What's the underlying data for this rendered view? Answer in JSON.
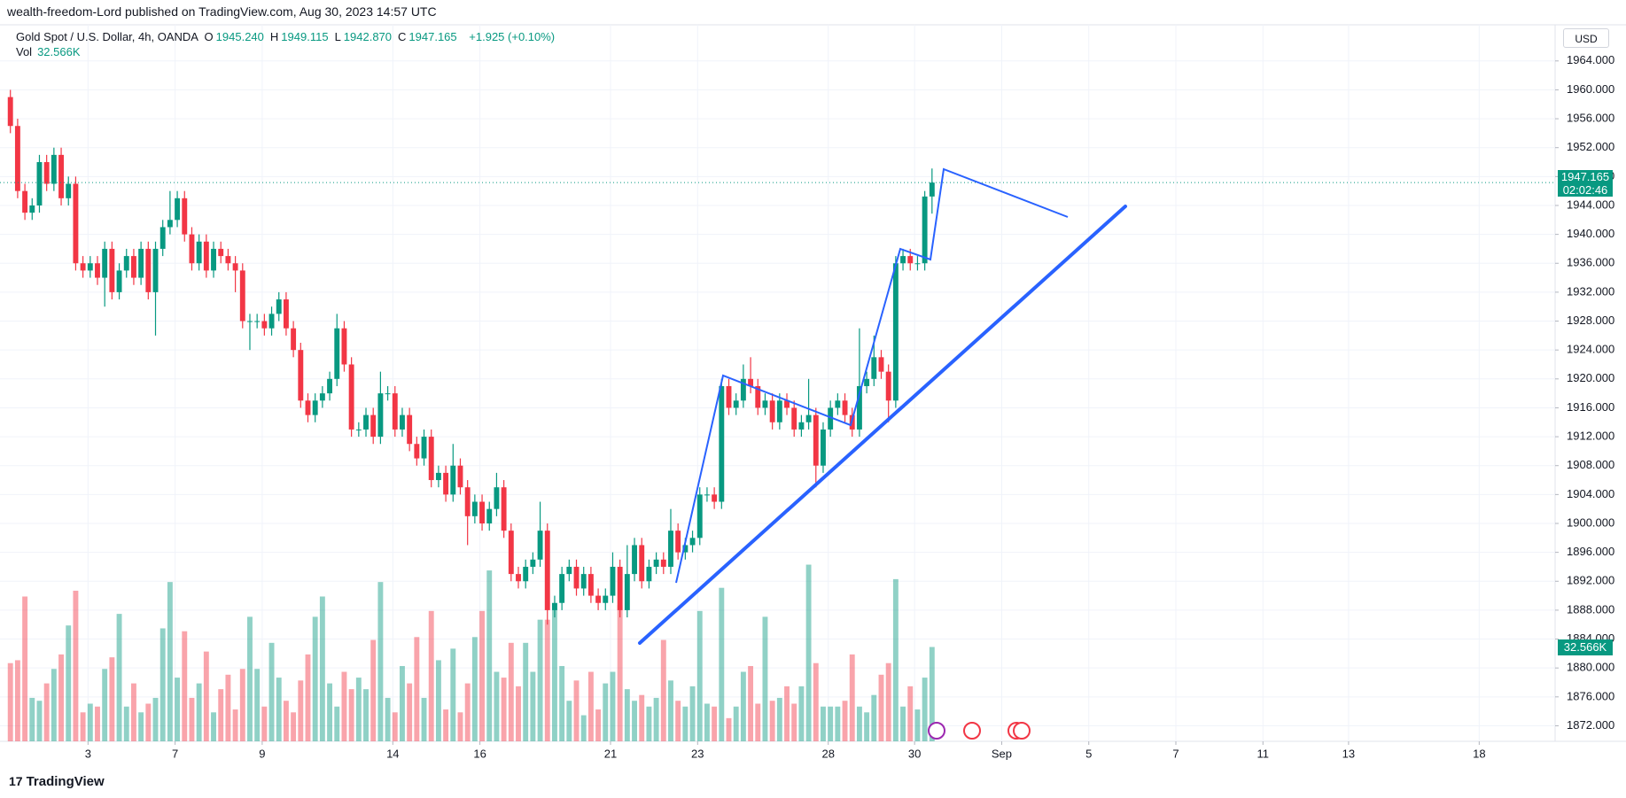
{
  "header": {
    "published": "wealth-freedom-Lord published on TradingView.com, Aug 30, 2023 14:57 UTC",
    "currency": "USD",
    "countdown": "02:02:46",
    "brand": "TradingView",
    "brand_logo": "17"
  },
  "legend": {
    "symbol": "Gold Spot / U.S. Dollar, 4h, OANDA",
    "ohlc": [
      {
        "key": "O",
        "value": "1945.240"
      },
      {
        "key": "H",
        "value": "1949.115"
      },
      {
        "key": "L",
        "value": "1942.870"
      },
      {
        "key": "C",
        "value": "1947.165"
      }
    ],
    "change": "+1.925 (+0.10%)",
    "vol_key": "Vol",
    "vol_value": "32.566K"
  },
  "chart_data": {
    "type": "candlestick",
    "up_color": "#089981",
    "down_color": "#f23645",
    "volume_up_color": "rgba(8,153,129,0.45)",
    "volume_down_color": "rgba(242,54,69,0.45)",
    "grid": true,
    "xlim": [
      -1.43,
      212.86
    ],
    "xticks": [
      {
        "value": 10.7,
        "label": "3"
      },
      {
        "value": 22.7,
        "label": "7"
      },
      {
        "value": 34.7,
        "label": "9"
      },
      {
        "value": 52.7,
        "label": "14"
      },
      {
        "value": 64.7,
        "label": "16"
      },
      {
        "value": 82.7,
        "label": "21"
      },
      {
        "value": 94.7,
        "label": "23"
      },
      {
        "value": 112.7,
        "label": "28"
      },
      {
        "value": 124.6,
        "label": "30"
      },
      {
        "value": 136.6,
        "label": "Sep"
      },
      {
        "value": 148.6,
        "label": "5"
      },
      {
        "value": 160.6,
        "label": "7"
      },
      {
        "value": 172.6,
        "label": "11"
      },
      {
        "value": 184.4,
        "label": "13"
      },
      {
        "value": 202.4,
        "label": "18"
      }
    ],
    "ylim": [
      1869.85,
      1969.0
    ],
    "yticks": [
      {
        "value": 1872,
        "label": "1872.000"
      },
      {
        "value": 1876,
        "label": "1876.000"
      },
      {
        "value": 1880,
        "label": "1880.000"
      },
      {
        "value": 1884,
        "label": "1884.000"
      },
      {
        "value": 1888,
        "label": "1888.000"
      },
      {
        "value": 1892,
        "label": "1892.000"
      },
      {
        "value": 1896,
        "label": "1896.000"
      },
      {
        "value": 1900,
        "label": "1900.000"
      },
      {
        "value": 1904,
        "label": "1904.000"
      },
      {
        "value": 1908,
        "label": "1908.000"
      },
      {
        "value": 1912,
        "label": "1912.000"
      },
      {
        "value": 1916,
        "label": "1916.000"
      },
      {
        "value": 1920,
        "label": "1920.000"
      },
      {
        "value": 1924,
        "label": "1924.000"
      },
      {
        "value": 1928,
        "label": "1928.000"
      },
      {
        "value": 1932,
        "label": "1932.000"
      },
      {
        "value": 1936,
        "label": "1936.000"
      },
      {
        "value": 1940,
        "label": "1940.000"
      },
      {
        "value": 1944,
        "label": "1944.000"
      },
      {
        "value": 1948,
        "label": "1948.000"
      },
      {
        "value": 1952,
        "label": "1952.000"
      },
      {
        "value": 1956,
        "label": "1956.000"
      },
      {
        "value": 1960,
        "label": "1960.000"
      },
      {
        "value": 1964,
        "label": "1964.000"
      }
    ],
    "volume_lim": [
      0,
      100
    ],
    "open": [
      1959,
      1955,
      1946,
      1943,
      1944,
      1950,
      1947,
      1951,
      1945,
      1947,
      1936,
      1935,
      1936,
      1934,
      1938,
      1932,
      1935,
      1937,
      1934,
      1938,
      1932,
      1938,
      1941,
      1942,
      1945,
      1940,
      1936,
      1939,
      1935,
      1938,
      1937,
      1936,
      1935,
      1928,
      1928,
      1928,
      1927,
      1929,
      1931,
      1927,
      1924,
      1917,
      1915,
      1917,
      1918,
      1920,
      1927,
      1922,
      1913,
      1913,
      1915,
      1912,
      1918,
      1918,
      1913,
      1915,
      1911,
      1909,
      1912,
      1906,
      1907,
      1904,
      1908,
      1905,
      1901,
      1903,
      1900,
      1902,
      1905,
      1899,
      1893,
      1892,
      1894,
      1895,
      1899,
      1888,
      1889,
      1893,
      1894,
      1891,
      1893,
      1890,
      1889,
      1890,
      1894,
      1888,
      1893,
      1897,
      1892,
      1894,
      1895,
      1894,
      1899,
      1896,
      1897,
      1898,
      1904,
      1904,
      1903,
      1919,
      1916,
      1917,
      1920,
      1919,
      1916,
      1917,
      1914,
      1917,
      1916,
      1913,
      1914,
      1915,
      1908,
      1913,
      1916,
      1917,
      1915,
      1913,
      1919,
      1920,
      1923,
      1921,
      1917,
      1936,
      1937,
      1936,
      1936,
      1945.24
    ],
    "high": [
      1960,
      1956,
      1947,
      1945,
      1951,
      1951,
      1952,
      1952,
      1948,
      1948,
      1937,
      1937,
      1937,
      1939,
      1939,
      1936,
      1938,
      1938,
      1939,
      1939,
      1939,
      1942,
      1946,
      1946,
      1946,
      1941,
      1940,
      1940,
      1939,
      1939,
      1938,
      1937,
      1936,
      1929,
      1929,
      1929,
      1930,
      1932,
      1932,
      1928,
      1925,
      1918,
      1918,
      1919,
      1921,
      1929,
      1928,
      1923,
      1914,
      1916,
      1916,
      1921,
      1919,
      1919,
      1916,
      1916,
      1912,
      1913,
      1913,
      1908,
      1908,
      1911,
      1909,
      1906,
      1904,
      1904,
      1903,
      1907,
      1906,
      1900,
      1894,
      1895,
      1896,
      1903,
      1900,
      1890,
      1894,
      1895,
      1895,
      1894,
      1894,
      1891,
      1891,
      1896,
      1895,
      1897,
      1898,
      1898,
      1895,
      1896,
      1896,
      1902,
      1900,
      1898,
      1899,
      1905,
      1905,
      1905,
      1920,
      1920,
      1918,
      1922,
      1923,
      1920,
      1918,
      1918,
      1918,
      1918,
      1917,
      1915,
      1920,
      1916,
      1914,
      1917,
      1918,
      1918,
      1916,
      1927,
      1921,
      1926,
      1924,
      1922,
      1937,
      1938,
      1938,
      1937,
      1946,
      1949.115
    ],
    "low": [
      1954,
      1945,
      1942,
      1942,
      1943,
      1946,
      1946,
      1944,
      1944,
      1935,
      1934,
      1934,
      1933,
      1930,
      1931,
      1931,
      1934,
      1933,
      1933,
      1931,
      1926,
      1937,
      1940,
      1941,
      1939,
      1935,
      1935,
      1934,
      1934,
      1936,
      1935,
      1932,
      1927,
      1924,
      1927,
      1926,
      1926,
      1928,
      1926,
      1923,
      1916,
      1914,
      1914,
      1916,
      1917,
      1919,
      1921,
      1912,
      1912,
      1912,
      1911,
      1911,
      1917,
      1912,
      1912,
      1910,
      1908,
      1908,
      1905,
      1905,
      1903,
      1903,
      1904,
      1897,
      1900,
      1899,
      1899,
      1901,
      1898,
      1892,
      1891,
      1891,
      1893,
      1894,
      1886,
      1887,
      1888,
      1892,
      1890,
      1890,
      1889,
      1888,
      1888,
      1889,
      1887,
      1887,
      1892,
      1891,
      1891,
      1893,
      1893,
      1893,
      1895,
      1895,
      1896,
      1897,
      1903,
      1902,
      1902,
      1915,
      1915,
      1916,
      1918,
      1915,
      1915,
      1913,
      1913,
      1915,
      1912,
      1912,
      1913,
      1905,
      1907,
      1912,
      1915,
      1914,
      1912,
      1912,
      1918,
      1919,
      1920,
      1914,
      1916,
      1935,
      1935,
      1935,
      1935,
      1942.87
    ],
    "close": [
      1955,
      1946,
      1943,
      1944,
      1950,
      1947,
      1951,
      1945,
      1947,
      1936,
      1935,
      1936,
      1934,
      1938,
      1932,
      1935,
      1937,
      1934,
      1938,
      1932,
      1938,
      1941,
      1942,
      1945,
      1940,
      1936,
      1939,
      1935,
      1938,
      1937,
      1936,
      1935,
      1928,
      1928,
      1928,
      1927,
      1929,
      1931,
      1927,
      1924,
      1917,
      1915,
      1917,
      1918,
      1920,
      1927,
      1922,
      1913,
      1913,
      1915,
      1912,
      1918,
      1918,
      1913,
      1915,
      1911,
      1909,
      1912,
      1906,
      1907,
      1904,
      1908,
      1905,
      1901,
      1903,
      1900,
      1902,
      1905,
      1899,
      1893,
      1892,
      1894,
      1895,
      1899,
      1888,
      1889,
      1893,
      1894,
      1891,
      1893,
      1890,
      1889,
      1890,
      1894,
      1888,
      1893,
      1897,
      1892,
      1894,
      1895,
      1894,
      1899,
      1896,
      1897,
      1898,
      1904,
      1904,
      1903,
      1919,
      1916,
      1917,
      1920,
      1919,
      1916,
      1917,
      1914,
      1917,
      1916,
      1913,
      1914,
      1915,
      1908,
      1913,
      1916,
      1917,
      1915,
      1913,
      1919,
      1920,
      1923,
      1921,
      1917,
      1936,
      1937,
      1936,
      1936,
      1945.24,
      1947.165
    ],
    "volume": [
      27,
      28,
      50,
      15,
      14,
      20,
      25,
      30,
      40,
      52,
      10,
      13,
      12,
      25,
      29,
      44,
      12,
      20,
      10,
      13,
      15,
      39,
      55,
      22,
      38,
      15,
      20,
      31,
      10,
      18,
      23,
      11,
      25,
      43,
      25,
      12,
      34,
      22,
      14,
      10,
      21,
      30,
      43,
      50,
      20,
      12,
      24,
      18,
      22,
      18,
      35,
      55,
      15,
      10,
      26,
      20,
      36,
      15,
      45,
      28,
      11,
      32,
      10,
      20,
      36,
      45,
      59,
      24,
      22,
      34,
      19,
      34,
      24,
      42,
      42,
      46,
      26,
      14,
      21,
      9,
      24,
      11,
      20,
      24,
      47,
      18,
      14,
      16,
      12,
      15,
      35,
      21,
      14,
      12,
      19,
      45,
      13,
      12,
      53,
      8,
      12,
      24,
      26,
      13,
      43,
      14,
      15,
      19,
      13,
      19,
      61,
      27,
      12,
      12,
      12,
      14,
      30,
      12,
      10,
      16,
      23,
      27,
      56,
      12,
      19,
      11,
      22,
      32.566
    ]
  }
}
